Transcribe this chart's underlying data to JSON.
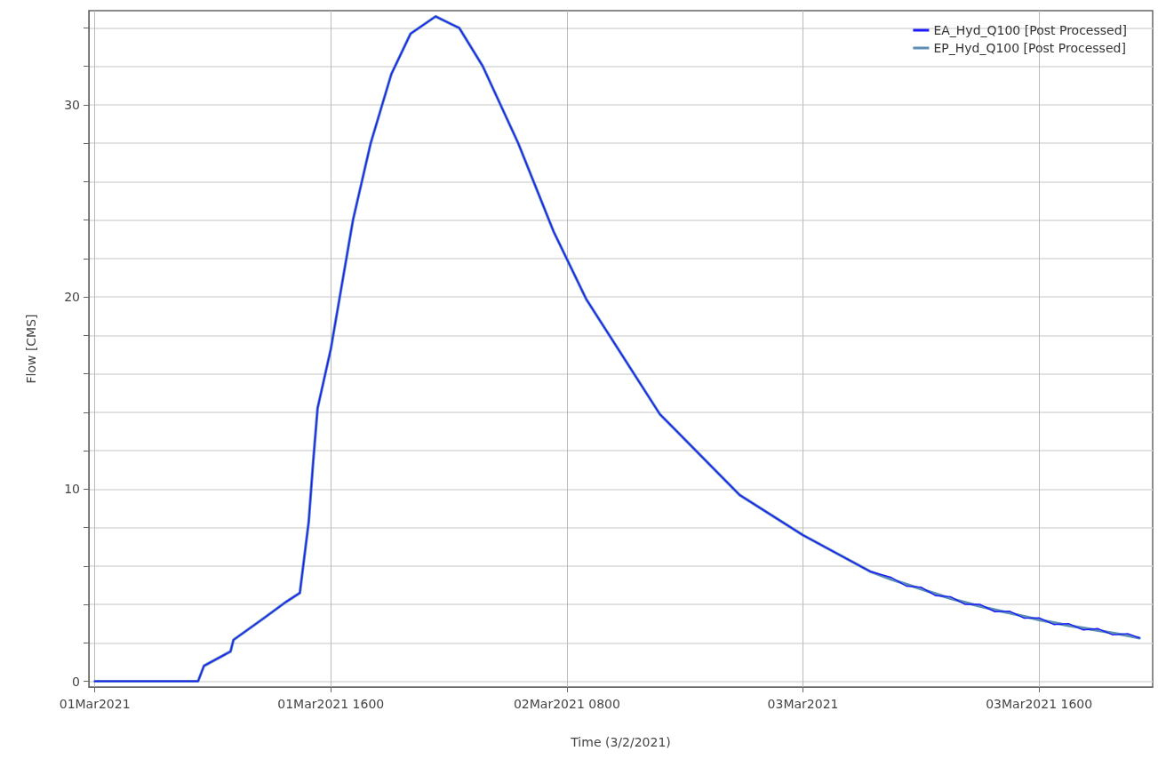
{
  "chart_data": {
    "type": "line",
    "xlabel": "Time (3/2/2021)",
    "ylabel": "Flow [CMS]",
    "x": [
      "2021-03-01T00:00",
      "2021-03-01T07:00",
      "2021-03-01T07:24",
      "2021-03-01T09:12",
      "2021-03-01T09:24",
      "2021-03-01T11:24",
      "2021-03-01T13:00",
      "2021-03-01T13:54",
      "2021-03-01T14:30",
      "2021-03-01T14:48",
      "2021-03-01T15:06",
      "2021-03-01T16:00",
      "2021-03-01T17:30",
      "2021-03-01T18:42",
      "2021-03-01T20:06",
      "2021-03-01T21:24",
      "2021-03-01T23:06",
      "2021-03-02T00:42",
      "2021-03-02T02:18",
      "2021-03-02T04:42",
      "2021-03-02T07:06",
      "2021-03-02T09:18",
      "2021-03-02T14:18",
      "2021-03-02T19:42",
      "2021-03-03T00:00",
      "2021-03-03T04:36",
      "2021-03-03T06:00",
      "2021-03-03T07:00",
      "2021-03-03T08:00",
      "2021-03-03T09:00",
      "2021-03-03T10:00",
      "2021-03-03T11:00",
      "2021-03-03T12:00",
      "2021-03-03T13:00",
      "2021-03-03T14:00",
      "2021-03-03T15:00",
      "2021-03-03T16:00",
      "2021-03-03T17:00",
      "2021-03-03T18:00",
      "2021-03-03T19:00",
      "2021-03-03T20:00",
      "2021-03-03T21:00",
      "2021-03-03T22:00",
      "2021-03-03T22:48"
    ],
    "series": [
      {
        "name": "EA_Hyd_Q100 [Post Processed]",
        "color": "#1a1aff",
        "values": [
          0,
          0,
          0.8,
          1.55,
          2.15,
          3.25,
          4.15,
          4.6,
          8.3,
          11.4,
          14.2,
          17.3,
          24.0,
          28.0,
          31.6,
          33.7,
          34.6,
          34.0,
          32.0,
          28.0,
          23.4,
          19.9,
          13.9,
          9.7,
          7.6,
          5.7,
          5.4,
          4.95,
          4.9,
          4.45,
          4.4,
          4.0,
          4.0,
          3.62,
          3.65,
          3.28,
          3.3,
          2.95,
          3.0,
          2.67,
          2.74,
          2.41,
          2.48,
          2.25
        ]
      },
      {
        "name": "EP_Hyd_Q100 [Post Processed]",
        "color": "#5b8db5",
        "values": [
          0,
          0,
          0.8,
          1.55,
          2.15,
          3.25,
          4.15,
          4.6,
          8.3,
          11.4,
          14.2,
          17.3,
          24.0,
          28.0,
          31.6,
          33.7,
          34.6,
          34.0,
          32.0,
          28.0,
          23.4,
          19.9,
          13.9,
          9.7,
          7.6,
          5.7,
          5.3,
          5.05,
          4.8,
          4.55,
          4.3,
          4.1,
          3.9,
          3.72,
          3.55,
          3.38,
          3.2,
          3.05,
          2.9,
          2.77,
          2.64,
          2.51,
          2.38,
          2.25
        ]
      }
    ],
    "xlim": [
      "2021-02-28T23:36",
      "2021-03-03T23:42"
    ],
    "xticks": [
      {
        "value": "2021-03-01T00:00",
        "label": "01Mar2021"
      },
      {
        "value": "2021-03-01T16:00",
        "label": "01Mar2021 1600"
      },
      {
        "value": "2021-03-02T08:00",
        "label": "02Mar2021 0800"
      },
      {
        "value": "2021-03-03T00:00",
        "label": "03Mar2021"
      },
      {
        "value": "2021-03-03T16:00",
        "label": "03Mar2021 1600"
      }
    ],
    "ylim": [
      -0.3,
      34.9
    ],
    "yticks": [
      0,
      {
        "value": 2,
        "label": null
      },
      {
        "value": 4,
        "label": null
      },
      {
        "value": 6,
        "label": null
      },
      {
        "value": 8,
        "label": null
      },
      10,
      {
        "value": 12,
        "label": null
      },
      {
        "value": 14,
        "label": null
      },
      {
        "value": 16,
        "label": null
      },
      {
        "value": 18,
        "label": null
      },
      20,
      {
        "value": 22,
        "label": null
      },
      {
        "value": 24,
        "label": null
      },
      {
        "value": 26,
        "label": null
      },
      {
        "value": 28,
        "label": null
      },
      30,
      {
        "value": 32,
        "label": null
      },
      {
        "value": 34,
        "label": null
      }
    ],
    "grid": true,
    "legend": "top right",
    "line_style": "solid",
    "marker": "none"
  }
}
